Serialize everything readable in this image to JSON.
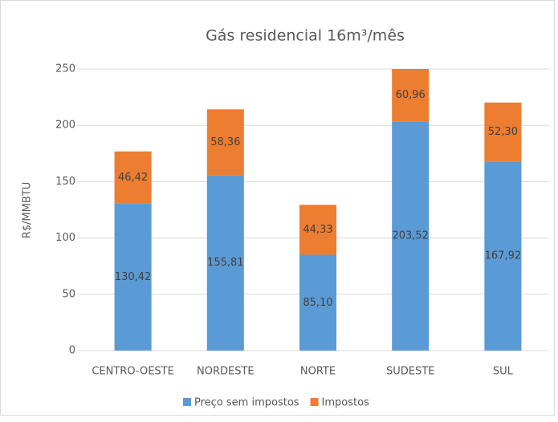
{
  "chart_data": {
    "type": "stacked-bar",
    "title": "Gás residencial 16m³/mês",
    "y_label": "R$/MMBTU",
    "categories": [
      "CENTRO-OESTE",
      "NORDESTE",
      "NORTE",
      "SUDESTE",
      "SUL"
    ],
    "series": [
      {
        "name": "Preço sem impostos",
        "color": "#5b9bd5",
        "values": [
          130.42,
          155.81,
          85.1,
          203.52,
          167.92
        ],
        "value_labels": [
          "130,42",
          "155,81",
          "85,10",
          "203,52",
          "167,92"
        ]
      },
      {
        "name": "Impostos",
        "color": "#ed7d31",
        "values": [
          46.42,
          58.36,
          44.33,
          60.96,
          52.3
        ],
        "value_labels": [
          "46,42",
          "58,36",
          "44,33",
          "60,96",
          "52,30"
        ]
      }
    ],
    "ylim": [
      0,
      250
    ],
    "yticks": [
      0,
      50,
      100,
      150,
      200,
      250
    ],
    "grid": true,
    "legend": "bottom"
  }
}
